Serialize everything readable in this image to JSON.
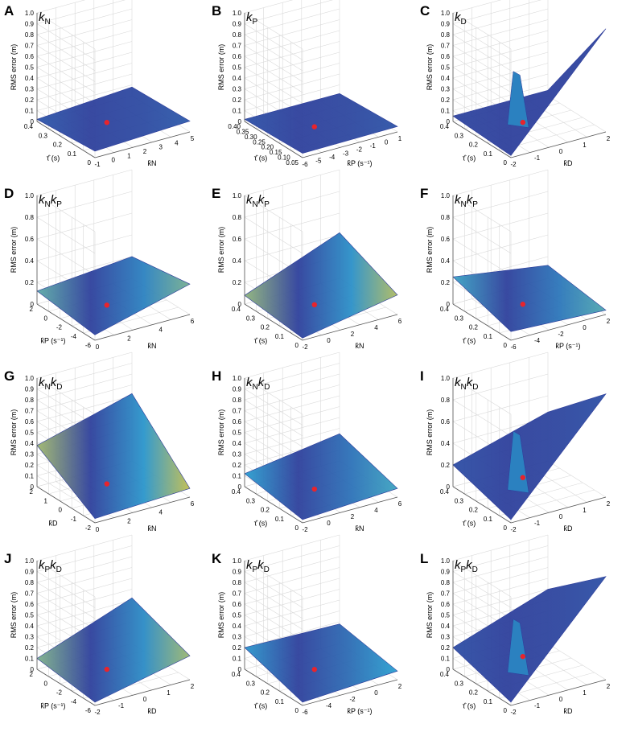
{
  "figure": {
    "colors": {
      "low": "#2e3c9a",
      "mid": "#2a9fd0",
      "high": "#e6c530",
      "marker": "#e8242c"
    }
  },
  "chart_data": [
    {
      "panel": "A",
      "type": "surface3d",
      "title": "k_N",
      "title_main": "k",
      "title_sub": "N",
      "zlabel": "RMS error (m)",
      "zticks": [
        "0",
        "0.1",
        "0.2",
        "0.3",
        "0.4",
        "0.5",
        "0.6",
        "0.7",
        "0.8",
        "0.9",
        "1.0"
      ],
      "zlim": [
        0,
        1.0
      ],
      "left_axis": {
        "label": "τ̂ (s)",
        "ticks": [
          "0.4",
          "0.3",
          "0.2",
          "0.1",
          "0"
        ]
      },
      "right_axis": {
        "label": "k̂N",
        "ticks": [
          "-1",
          "0",
          "1",
          "2",
          "3",
          "4",
          "5"
        ]
      },
      "surface_level": [
        0.02,
        0.06,
        0.1,
        0.08
      ],
      "bump": 0,
      "color_level": 0.15,
      "minimum": {
        "z": 0.06
      }
    },
    {
      "panel": "B",
      "type": "surface3d",
      "title": "k_P",
      "title_main": "k",
      "title_sub": "P",
      "zlabel": "RMS error (m)",
      "zticks": [
        "0",
        "0.1",
        "0.2",
        "0.3",
        "0.4",
        "0.5",
        "0.6",
        "0.7",
        "0.8",
        "0.9",
        "1.0"
      ],
      "zlim": [
        0,
        1.0
      ],
      "left_axis": {
        "label": "τ̂ (s)",
        "ticks": [
          "0.40",
          "0.35",
          "0.30",
          "0.25",
          "0.20",
          "0.15",
          "0.10",
          "0.05"
        ]
      },
      "right_axis": {
        "label": "k̂P (s⁻¹)",
        "ticks": [
          "-6",
          "-5",
          "-4",
          "-3",
          "-2",
          "-1",
          "0",
          "1"
        ]
      },
      "surface_level": [
        0.02,
        0.04,
        0.05,
        0.02
      ],
      "bump": 0,
      "color_level": 0.12,
      "minimum": {
        "z": 0.03
      }
    },
    {
      "panel": "C",
      "type": "surface3d",
      "title": "k_D",
      "title_main": "k",
      "title_sub": "D",
      "zlabel": "RMS error (m)",
      "zticks": [
        "0",
        "0.1",
        "0.2",
        "0.3",
        "0.4",
        "0.5",
        "0.6",
        "0.7",
        "0.8",
        "0.9",
        "1.0"
      ],
      "zlim": [
        0,
        1.0
      ],
      "left_axis": {
        "label": "τ̂ (s)",
        "ticks": [
          "0.4",
          "0.3",
          "0.2",
          "0.1",
          "0"
        ]
      },
      "right_axis": {
        "label": "k̂D",
        "ticks": [
          "-2",
          "-1",
          "0",
          "1",
          "2"
        ]
      },
      "surface_level": [
        0.05,
        0.02,
        0.95,
        0.05
      ],
      "bump": 0.55,
      "color_level": 0.05,
      "minimum": {
        "z": 0.0
      }
    },
    {
      "panel": "D",
      "type": "surface3d",
      "title": "k_N k_P",
      "title_main": "k",
      "title_sub": "N",
      "title_main2": "k",
      "title_sub2": "P",
      "zlabel": "RMS error (m)",
      "zticks": [
        "0",
        "0.2",
        "0.4",
        "0.6",
        "0.8",
        "1.0"
      ],
      "zlim": [
        0,
        1.0
      ],
      "left_axis": {
        "label": "k̂P (s⁻¹)",
        "ticks": [
          "2",
          "0",
          "-2",
          "-4",
          "-6"
        ]
      },
      "right_axis": {
        "label": "k̂N",
        "ticks": [
          "0",
          "2",
          "4",
          "6"
        ]
      },
      "surface_level": [
        0.12,
        0.05,
        0.28,
        0.2
      ],
      "bump": 0,
      "color_level": 0.7,
      "minimum": {
        "z": 0.03
      }
    },
    {
      "panel": "E",
      "type": "surface3d",
      "title": "k_N k_P",
      "title_main": "k",
      "title_sub": "N",
      "title_main2": "k",
      "title_sub2": "P",
      "zlabel": "RMS error (m)",
      "zticks": [
        "0",
        "0.2",
        "0.4",
        "0.6",
        "0.8",
        "1.0"
      ],
      "zlim": [
        0,
        1.0
      ],
      "left_axis": {
        "label": "τ̂ (s)",
        "ticks": [
          "0.4",
          "0.3",
          "0.2",
          "0.1",
          "0"
        ]
      },
      "right_axis": {
        "label": "k̂N",
        "ticks": [
          "-2",
          "0",
          "2",
          "4",
          "6"
        ]
      },
      "surface_level": [
        0.08,
        0.02,
        0.18,
        0.42
      ],
      "bump": 0,
      "color_level": 0.85,
      "minimum": {
        "z": 0.03
      }
    },
    {
      "panel": "F",
      "type": "surface3d",
      "title": "k_N k_P",
      "title_main": "k",
      "title_sub": "N",
      "title_main2": "k",
      "title_sub2": "P",
      "zlabel": "RMS error (m)",
      "zticks": [
        "0",
        "0.2",
        "0.4",
        "0.6",
        "0.8",
        "1.0"
      ],
      "zlim": [
        0,
        1.0
      ],
      "left_axis": {
        "label": "τ̂ (s)",
        "ticks": [
          "0.4",
          "0.3",
          "0.2",
          "0.1",
          "0"
        ]
      },
      "right_axis": {
        "label": "k̂P (s⁻¹)",
        "ticks": [
          "-6",
          "-4",
          "-2",
          "0",
          "2"
        ]
      },
      "surface_level": [
        0.25,
        0.08,
        0.04,
        0.12
      ],
      "bump": 0,
      "color_level": 0.6,
      "minimum": {
        "z": 0.05
      }
    },
    {
      "panel": "G",
      "type": "surface3d",
      "title": "k_N k_D",
      "title_main": "k",
      "title_sub": "N",
      "title_main2": "k",
      "title_sub2": "D",
      "zlabel": "RMS error (m)",
      "zticks": [
        "0",
        "0.1",
        "0.2",
        "0.3",
        "0.4",
        "0.5",
        "0.6",
        "0.7",
        "0.8",
        "0.9",
        "1.0"
      ],
      "zlim": [
        0,
        1.0
      ],
      "left_axis": {
        "label": "k̂D",
        "ticks": [
          "2",
          "1",
          "0",
          "-1",
          "-2"
        ]
      },
      "right_axis": {
        "label": "k̂N",
        "ticks": [
          "0",
          "2",
          "4",
          "6"
        ]
      },
      "surface_level": [
        0.38,
        0.04,
        0.08,
        0.62
      ],
      "bump": 0,
      "color_level": 0.9,
      "minimum": {
        "z": 0.03
      }
    },
    {
      "panel": "H",
      "type": "surface3d",
      "title": "k_N k_D",
      "title_main": "k",
      "title_sub": "N",
      "title_main2": "k",
      "title_sub2": "D",
      "zlabel": "RMS error (m)",
      "zticks": [
        "0",
        "0.1",
        "0.2",
        "0.3",
        "0.4",
        "0.5",
        "0.6",
        "0.7",
        "0.8",
        "0.9",
        "1.0"
      ],
      "zlim": [
        0,
        1.0
      ],
      "left_axis": {
        "label": "τ̂ (s)",
        "ticks": [
          "0.4",
          "0.3",
          "0.2",
          "0.1",
          "0"
        ]
      },
      "right_axis": {
        "label": "k̂N",
        "ticks": [
          "-2",
          "0",
          "2",
          "4",
          "6"
        ]
      },
      "surface_level": [
        0.12,
        0.03,
        0.08,
        0.25
      ],
      "bump": 0,
      "color_level": 0.55,
      "minimum": {
        "z": 0.03
      }
    },
    {
      "panel": "I",
      "type": "surface3d",
      "title": "k_N k_D",
      "title_main": "k",
      "title_sub": "N",
      "title_main2": "k",
      "title_sub2": "D",
      "zlabel": "RMS error (m)",
      "zticks": [
        "0",
        "0.2",
        "0.4",
        "0.6",
        "0.8",
        "1.0"
      ],
      "zlim": [
        0,
        1.0
      ],
      "left_axis": {
        "label": "τ̂ (s)",
        "ticks": [
          "0.4",
          "0.3",
          "0.2",
          "0.1",
          "0"
        ]
      },
      "right_axis": {
        "label": "k̂D",
        "ticks": [
          "-2",
          "-1",
          "0",
          "1",
          "2"
        ]
      },
      "surface_level": [
        0.2,
        0.03,
        0.95,
        0.45
      ],
      "bump": 0.6,
      "color_level": 0.1,
      "minimum": {
        "z": 0.05
      }
    },
    {
      "panel": "J",
      "type": "surface3d",
      "title": "k_P k_D",
      "title_main": "k",
      "title_sub": "P",
      "title_main2": "k",
      "title_sub2": "D",
      "zlabel": "RMS error (m)",
      "zticks": [
        "0",
        "0.1",
        "0.2",
        "0.3",
        "0.4",
        "0.5",
        "0.6",
        "0.7",
        "0.8",
        "0.9",
        "1.0"
      ],
      "zlim": [
        0,
        1.0
      ],
      "left_axis": {
        "label": "k̂P (s⁻¹)",
        "ticks": [
          "2",
          "0",
          "-2",
          "-4",
          "-6"
        ]
      },
      "right_axis": {
        "label": "k̂D",
        "ticks": [
          "-2",
          "-1",
          "0",
          "1",
          "2"
        ]
      },
      "surface_level": [
        0.1,
        0.03,
        0.22,
        0.42
      ],
      "bump": 0,
      "color_level": 0.8,
      "minimum": {
        "z": 0.03
      }
    },
    {
      "panel": "K",
      "type": "surface3d",
      "title": "k_P k_D",
      "title_main": "k",
      "title_sub": "P",
      "title_main2": "k",
      "title_sub2": "D",
      "zlabel": "RMS error (m)",
      "zticks": [
        "0",
        "0.1",
        "0.2",
        "0.3",
        "0.4",
        "0.5",
        "0.6",
        "0.7",
        "0.8",
        "0.9",
        "1.0"
      ],
      "zlim": [
        0,
        1.0
      ],
      "left_axis": {
        "label": "τ̂ (s)",
        "ticks": [
          "0.4",
          "0.3",
          "0.2",
          "0.1",
          "0"
        ]
      },
      "right_axis": {
        "label": "k̂P (s⁻¹)",
        "ticks": [
          "-6",
          "-4",
          "-2",
          "0",
          "2"
        ]
      },
      "surface_level": [
        0.2,
        0.03,
        0.08,
        0.18
      ],
      "bump": 0,
      "color_level": 0.5,
      "minimum": {
        "z": 0.05
      }
    },
    {
      "panel": "L",
      "type": "surface3d",
      "title": "k_P k_D",
      "title_main": "k",
      "title_sub": "P",
      "title_main2": "k",
      "title_sub2": "D",
      "zlabel": "RMS error (m)",
      "zticks": [
        "0",
        "0.1",
        "0.2",
        "0.3",
        "0.4",
        "0.5",
        "0.6",
        "0.7",
        "0.8",
        "0.9",
        "1.0"
      ],
      "zlim": [
        0,
        1.0
      ],
      "left_axis": {
        "label": "τ̂ (s)",
        "ticks": [
          "0.4",
          "0.3",
          "0.2",
          "0.1",
          "0"
        ]
      },
      "right_axis": {
        "label": "k̂D",
        "ticks": [
          "-2",
          "-1",
          "0",
          "1",
          "2"
        ]
      },
      "surface_level": [
        0.2,
        0.03,
        0.95,
        0.5
      ],
      "bump": 0.55,
      "color_level": 0.1,
      "minimum": {
        "z": 0.08
      }
    }
  ]
}
